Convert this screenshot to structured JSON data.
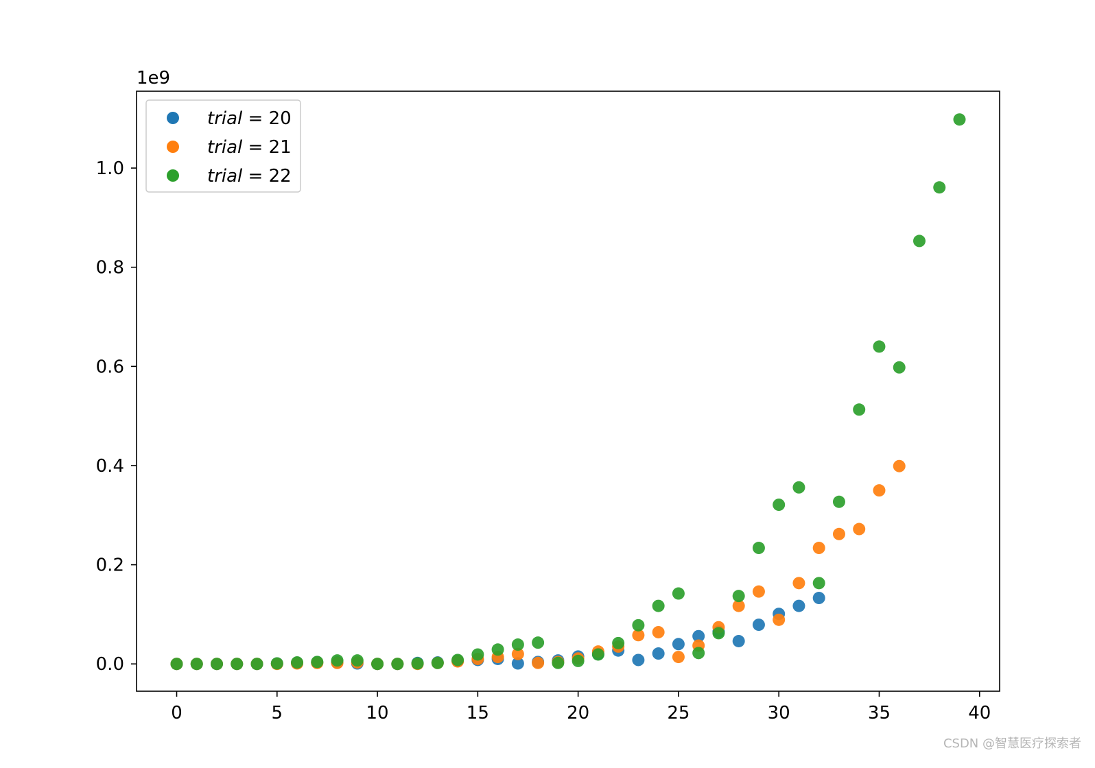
{
  "chart_data": {
    "type": "scatter",
    "title": "",
    "xlabel": "",
    "ylabel": "",
    "y_offset_text": "1e9",
    "xlim": [
      -2,
      41
    ],
    "ylim": [
      -0.055,
      1.155
    ],
    "x_ticks": [
      0,
      5,
      10,
      15,
      20,
      25,
      30,
      35,
      40
    ],
    "x_tick_labels": [
      "0",
      "5",
      "10",
      "15",
      "20",
      "25",
      "30",
      "35",
      "40"
    ],
    "y_ticks": [
      0.0,
      0.2,
      0.4,
      0.6,
      0.8,
      1.0
    ],
    "y_tick_labels": [
      "0.0",
      "0.2",
      "0.4",
      "0.6",
      "0.8",
      "1.0"
    ],
    "grid": false,
    "legend_position": "top-left",
    "series": [
      {
        "name": "trial = 20",
        "name_var": "trial",
        "name_value": "20",
        "color": "#1f77b4",
        "x": [
          0,
          1,
          2,
          3,
          4,
          5,
          6,
          7,
          8,
          9,
          10,
          11,
          12,
          13,
          14,
          15,
          16,
          17,
          18,
          19,
          20,
          21,
          22,
          23,
          24,
          25,
          26,
          27,
          28,
          29,
          30,
          31,
          32
        ],
        "y": [
          0,
          0,
          0,
          0,
          0,
          0.001,
          0.002,
          0.003,
          0.003,
          0.001,
          0,
          0,
          0.002,
          0.003,
          0.006,
          0.008,
          0.01,
          0.001,
          0.004,
          0.007,
          0.015,
          0.02,
          0.027,
          0.008,
          0.021,
          0.04,
          0.056,
          0.065,
          0.046,
          0.079,
          0.101,
          0.117,
          0.133
        ]
      },
      {
        "name": "trial = 21",
        "name_var": "trial",
        "name_value": "21",
        "color": "#ff7f0e",
        "x": [
          0,
          1,
          2,
          3,
          4,
          5,
          6,
          7,
          8,
          9,
          10,
          11,
          12,
          13,
          14,
          15,
          16,
          17,
          18,
          19,
          20,
          21,
          22,
          23,
          24,
          25,
          26,
          27,
          28,
          29,
          30,
          31,
          32,
          33,
          34,
          35,
          36
        ],
        "y": [
          0,
          0,
          0,
          0,
          0,
          0,
          0.001,
          0.002,
          0.002,
          0.003,
          0,
          0,
          0,
          0.002,
          0.005,
          0.01,
          0.014,
          0.02,
          0.002,
          0.004,
          0.011,
          0.025,
          0.035,
          0.058,
          0.064,
          0.014,
          0.037,
          0.074,
          0.117,
          0.146,
          0.089,
          0.163,
          0.234,
          0.262,
          0.272,
          0.35,
          0.399
        ]
      },
      {
        "name": "trial = 22",
        "name_var": "trial",
        "name_value": "22",
        "color": "#2ca02c",
        "x": [
          0,
          1,
          2,
          3,
          4,
          5,
          6,
          7,
          8,
          9,
          10,
          11,
          12,
          13,
          14,
          15,
          16,
          17,
          18,
          19,
          20,
          21,
          22,
          23,
          24,
          25,
          26,
          27,
          28,
          29,
          30,
          31,
          32,
          33,
          34,
          35,
          36,
          37,
          38,
          39
        ],
        "y": [
          0,
          0,
          0,
          0,
          0,
          0.001,
          0.003,
          0.004,
          0.007,
          0.007,
          0,
          0,
          0.001,
          0.002,
          0.008,
          0.019,
          0.029,
          0.039,
          0.043,
          0.002,
          0.006,
          0.019,
          0.042,
          0.078,
          0.117,
          0.142,
          0.022,
          0.062,
          0.137,
          0.234,
          0.321,
          0.356,
          0.163,
          0.327,
          0.513,
          0.64,
          0.598,
          0.853,
          0.961,
          1.098
        ]
      }
    ]
  },
  "watermark": "CSDN @智慧医疗探索者"
}
